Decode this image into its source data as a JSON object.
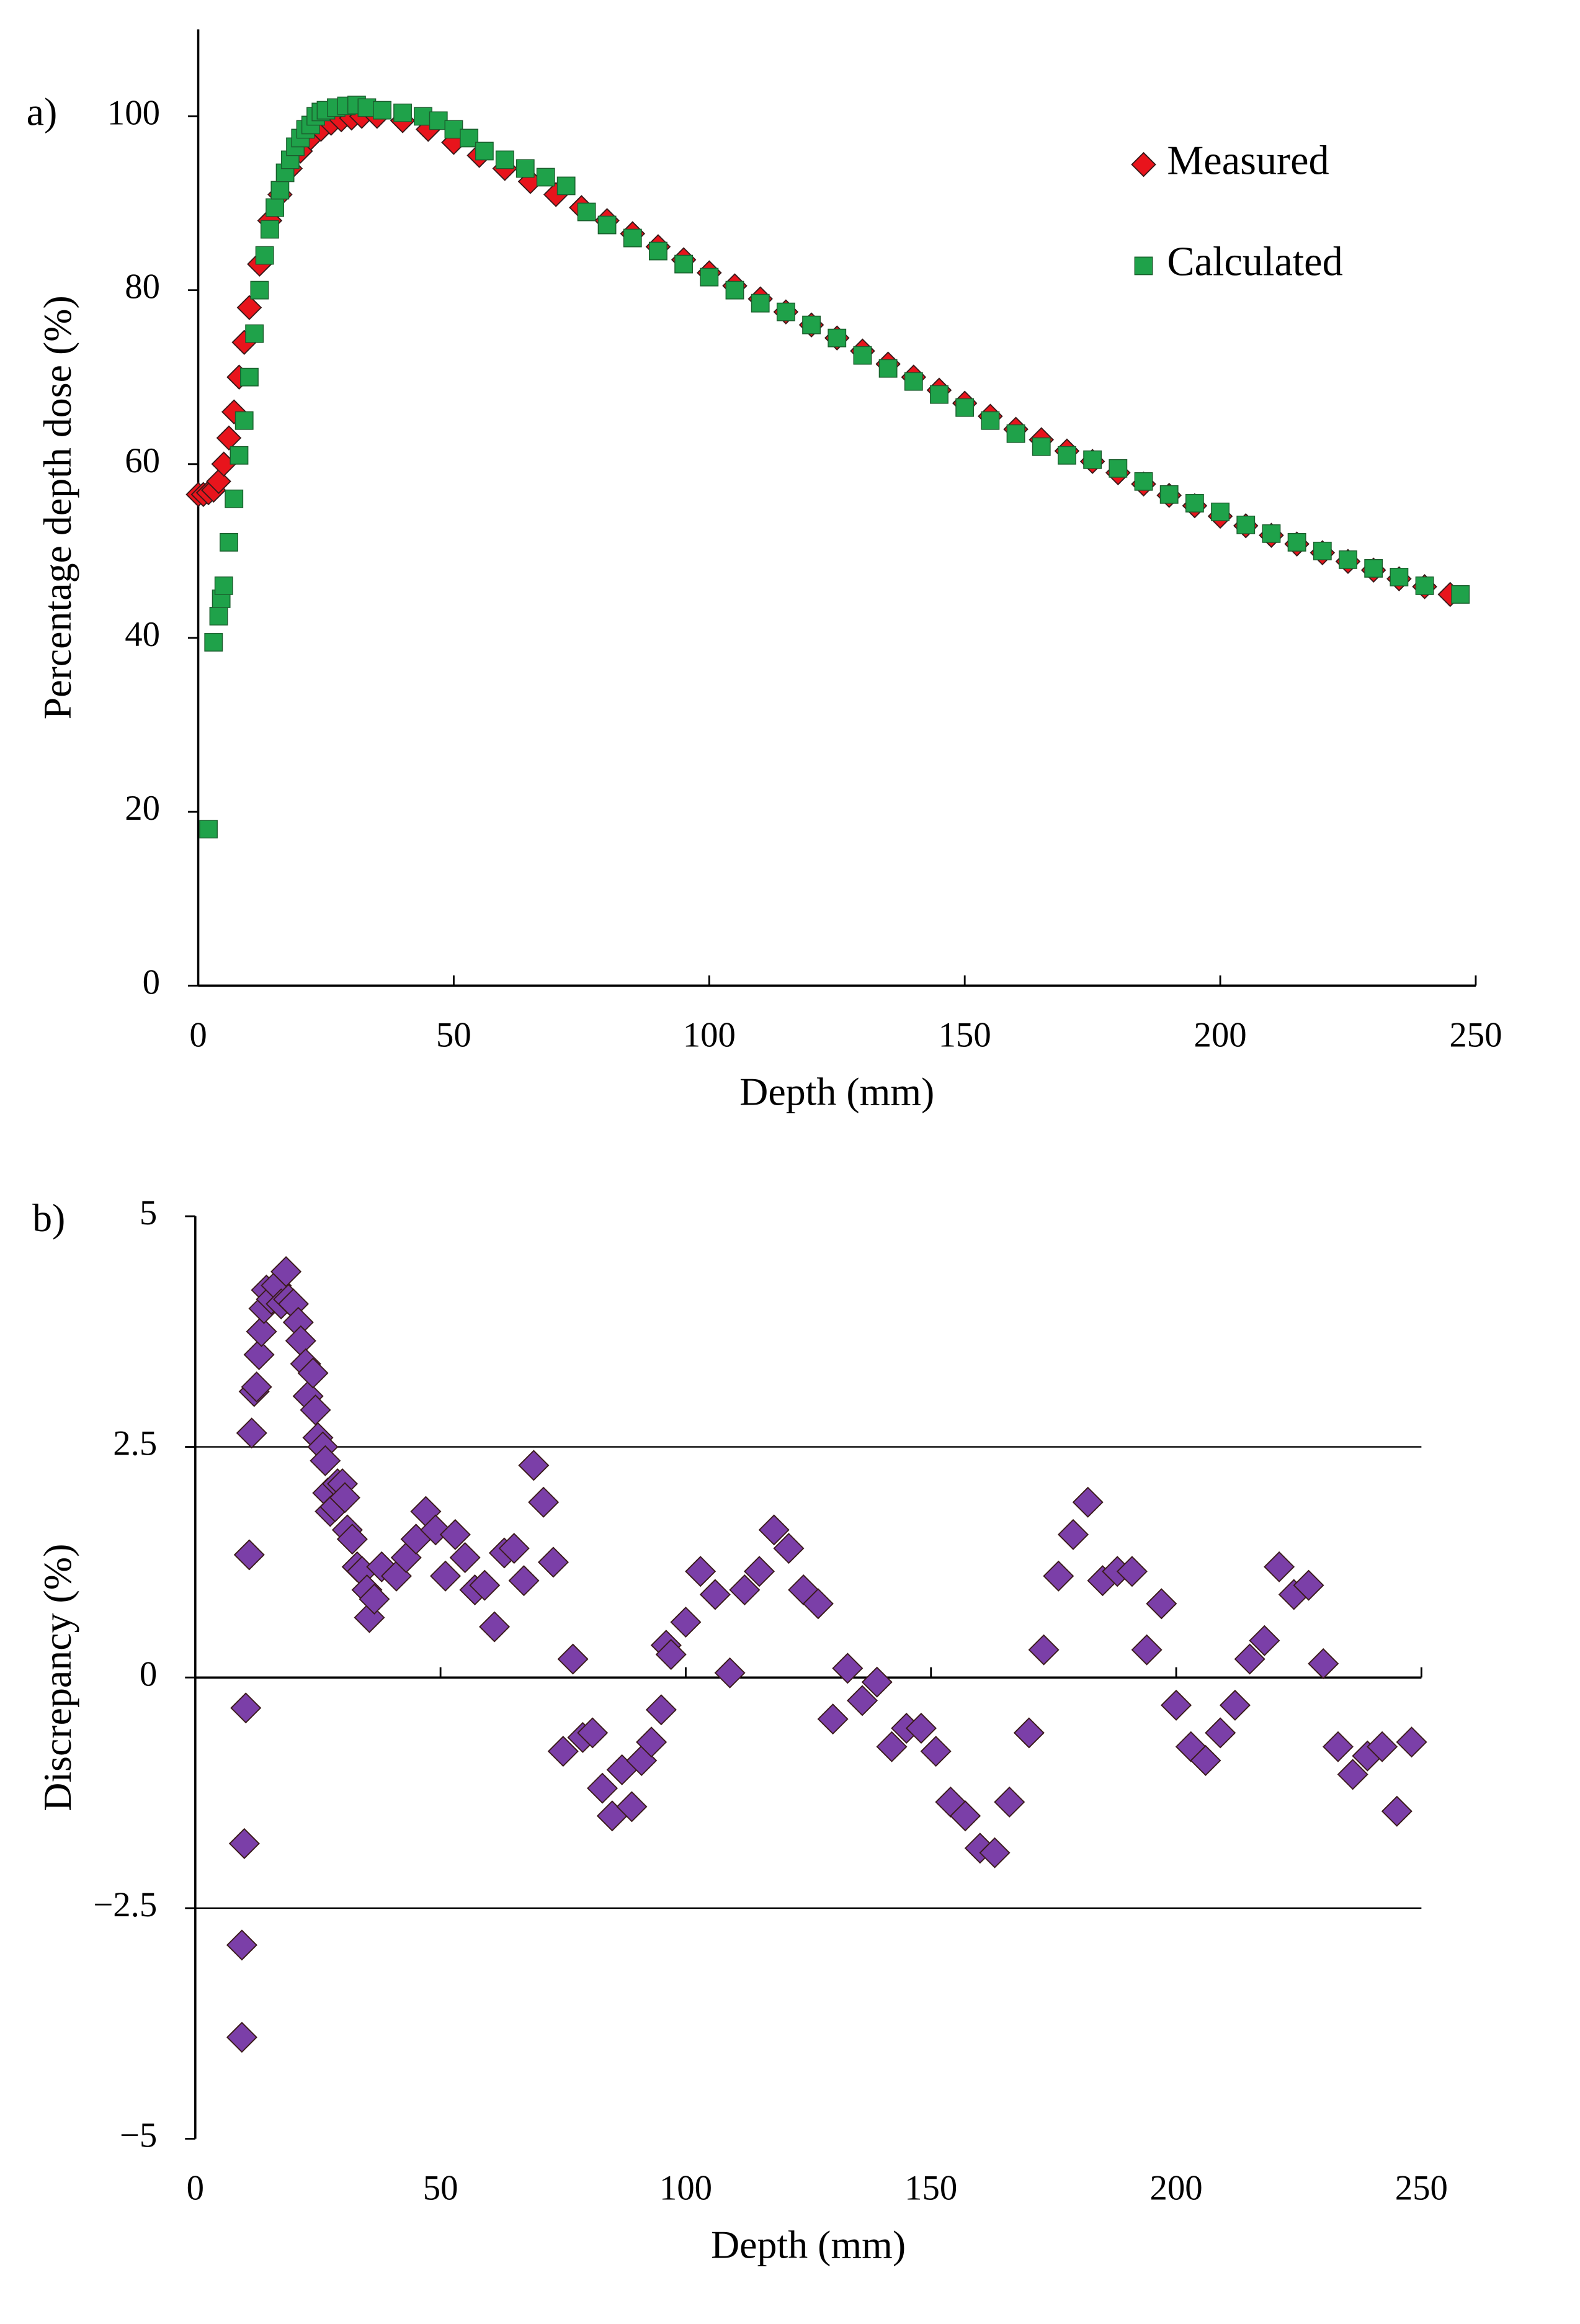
{
  "chart_data": [
    {
      "type": "scatter",
      "annotation": "a)",
      "xlabel": "Depth (mm)",
      "ylabel": "Percentage depth dose (%)",
      "xlim": [
        0,
        250
      ],
      "ylim": [
        0,
        110
      ],
      "xticks": [
        0,
        50,
        100,
        150,
        200,
        250
      ],
      "yticks": [
        0,
        20,
        40,
        60,
        80,
        100
      ],
      "legend": "upper right",
      "series": [
        {
          "name": "Measured",
          "color": "#e8141c",
          "marker": "diamond",
          "x": [
            0,
            1,
            2,
            3,
            4,
            5,
            6,
            7,
            8,
            9,
            10,
            12,
            14,
            16,
            18,
            20,
            22,
            24,
            26,
            28,
            30,
            32,
            35,
            40,
            45,
            50,
            55,
            60,
            65,
            70,
            75,
            80,
            85,
            90,
            95,
            100,
            105,
            110,
            115,
            120,
            125,
            130,
            135,
            140,
            145,
            150,
            155,
            160,
            165,
            170,
            175,
            180,
            185,
            190,
            195,
            200,
            205,
            210,
            215,
            220,
            225,
            230,
            235,
            240,
            245
          ],
          "values": [
            56.5,
            56.5,
            56.7,
            57,
            58,
            60,
            63,
            66,
            70,
            74,
            78,
            83,
            88,
            91,
            94,
            96,
            97.5,
            98.5,
            99.2,
            99.6,
            99.8,
            100,
            100,
            99.5,
            98.5,
            97,
            95.5,
            94,
            92.5,
            91,
            89.5,
            88,
            86.5,
            85,
            83.5,
            82,
            80.5,
            79,
            77.5,
            76,
            74.5,
            73,
            71.5,
            70,
            68.5,
            67,
            65.5,
            64,
            62.8,
            61.5,
            60.3,
            59,
            57.7,
            56.4,
            55.2,
            54,
            52.9,
            51.8,
            50.8,
            49.8,
            48.8,
            47.8,
            46.8,
            45.9,
            45
          ]
        },
        {
          "name": "Calculated",
          "color": "#1fa24a",
          "marker": "square",
          "x": [
            2,
            3,
            4,
            4.5,
            5,
            6,
            7,
            8,
            9,
            10,
            11,
            12,
            13,
            14,
            15,
            16,
            17,
            18,
            19,
            20,
            21,
            22,
            23,
            24,
            25,
            27,
            29,
            31,
            33,
            36,
            40,
            44,
            47,
            50,
            53,
            56,
            60,
            64,
            68,
            72,
            76,
            80,
            85,
            90,
            95,
            100,
            105,
            110,
            115,
            120,
            125,
            130,
            135,
            140,
            145,
            150,
            155,
            160,
            165,
            170,
            175,
            180,
            185,
            190,
            195,
            200,
            205,
            210,
            215,
            220,
            225,
            230,
            235,
            240,
            247
          ],
          "values": [
            18,
            39.5,
            42.5,
            44.5,
            46,
            51,
            56,
            61,
            65,
            70,
            75,
            80,
            84,
            87,
            89.5,
            91.5,
            93.5,
            95,
            96.5,
            97.5,
            98.5,
            99,
            100,
            100.5,
            100.7,
            101,
            101.2,
            101.3,
            101,
            100.7,
            100.4,
            100,
            99.5,
            98.5,
            97.5,
            96,
            95,
            94,
            93,
            92,
            89,
            87.5,
            86,
            84.5,
            83,
            81.5,
            80,
            78.5,
            77.5,
            76,
            74.5,
            72.5,
            71,
            69.5,
            68,
            66.5,
            65,
            63.5,
            62,
            61,
            60.5,
            59.5,
            58,
            56.5,
            55.5,
            54.5,
            53,
            52,
            51,
            50,
            49,
            48,
            47,
            46,
            45
          ]
        }
      ]
    },
    {
      "type": "scatter",
      "annotation": "b)",
      "xlabel": "Depth (mm)",
      "ylabel": "Discrepancy (%)",
      "xlim": [
        0,
        250
      ],
      "ylim": [
        -5,
        5
      ],
      "xticks": [
        0,
        50,
        100,
        150,
        200,
        250
      ],
      "yticks": [
        {
          "value": -5,
          "label": "−5"
        },
        {
          "value": -2.5,
          "label": "−2.5"
        },
        0,
        2.5,
        5
      ],
      "reference_lines": [
        -2.5,
        0,
        2.5
      ],
      "series": [
        {
          "color": "#7b3fa8",
          "marker": "diamond",
          "x": [
            9.5,
            9.5,
            10,
            10.3,
            11,
            11.5,
            12,
            12.5,
            13,
            13.5,
            14,
            14.5,
            15.5,
            16.5,
            17.5,
            18.5,
            19,
            20,
            21,
            21.5,
            22.5,
            23,
            24,
            24.5,
            25,
            26,
            26.5,
            27,
            27.5,
            28.5,
            29,
            30,
            30.5,
            31,
            32,
            33,
            34,
            35,
            35.5,
            36.5,
            38,
            41,
            43,
            45,
            47,
            49,
            51,
            53,
            55,
            57,
            59,
            61,
            63,
            65,
            67,
            69,
            71,
            73,
            75,
            77,
            79,
            81,
            83,
            85,
            87,
            89,
            91,
            93,
            95,
            96,
            97,
            100,
            103,
            106,
            109,
            112,
            115,
            118,
            121,
            124,
            127,
            130,
            133,
            136,
            139,
            142,
            145,
            148,
            151,
            154,
            157,
            160,
            163,
            166,
            170,
            173,
            176,
            179,
            182,
            185,
            188,
            191,
            194,
            197,
            200,
            203,
            206,
            209,
            212,
            215,
            218,
            221,
            224,
            227,
            230,
            233,
            236,
            239,
            242,
            245,
            248
          ],
          "values": [
            -3.9,
            -2.9,
            -1.8,
            -0.33,
            1.33,
            2.65,
            3.1,
            3.15,
            3.5,
            3.75,
            4.0,
            4.2,
            4.1,
            4.25,
            4.05,
            4.4,
            4.1,
            4.05,
            3.85,
            3.65,
            3.4,
            3.05,
            3.3,
            2.9,
            2.6,
            2.5,
            2.35,
            2.0,
            1.8,
            1.85,
            2.1,
            2.1,
            1.95,
            1.6,
            1.5,
            1.2,
            1.15,
            0.95,
            0.65,
            0.85,
            1.2,
            1.1,
            1.3,
            1.5,
            1.8,
            1.6,
            1.1,
            1.55,
            1.3,
            0.95,
            1.0,
            0.55,
            1.35,
            1.4,
            1.05,
            2.3,
            1.9,
            1.25,
            -0.8,
            0.2,
            -0.65,
            -0.6,
            -1.2,
            -1.5,
            -1.0,
            -1.4,
            -0.9,
            -0.7,
            -0.35,
            0.35,
            0.25,
            0.6,
            1.15,
            0.9,
            0.05,
            0.95,
            1.15,
            1.6,
            1.4,
            0.95,
            0.8,
            -0.45,
            0.1,
            -0.25,
            -0.05,
            -0.75,
            -0.55,
            -0.55,
            -0.8,
            -1.35,
            -1.5,
            -1.85,
            -1.9,
            -1.35,
            -0.6,
            0.3,
            1.1,
            1.55,
            1.9,
            1.05,
            1.15,
            1.15,
            0.3,
            0.8,
            -0.3,
            -0.75,
            -0.9,
            -0.6,
            -0.3,
            0.2,
            0.4,
            1.2,
            0.9,
            1.0,
            0.15,
            -0.75,
            -1.05,
            -0.85,
            -0.75,
            -1.45,
            -0.7
          ]
        }
      ]
    }
  ]
}
